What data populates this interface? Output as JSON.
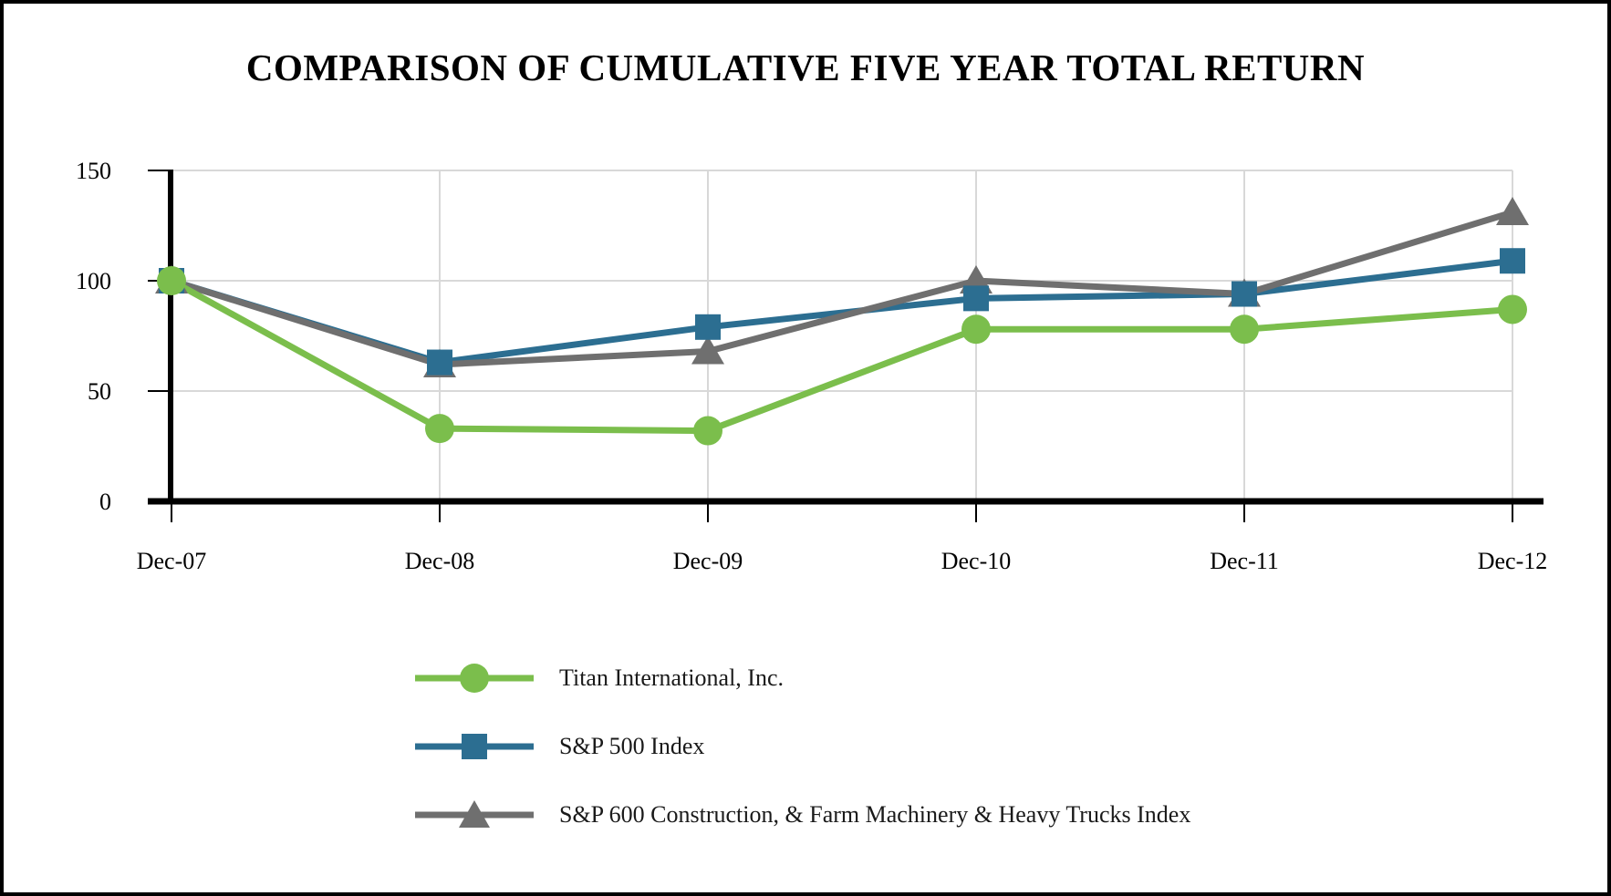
{
  "title": "COMPARISON OF CUMULATIVE FIVE YEAR TOTAL RETURN",
  "chart_data": {
    "type": "line",
    "title": "COMPARISON OF CUMULATIVE FIVE YEAR TOTAL RETURN",
    "categories": [
      "Dec-07",
      "Dec-08",
      "Dec-09",
      "Dec-10",
      "Dec-11",
      "Dec-12"
    ],
    "series": [
      {
        "name": "Titan International, Inc.",
        "marker": "circle",
        "color": "#7BBE4C",
        "values": [
          100,
          33,
          32,
          78,
          78,
          87
        ]
      },
      {
        "name": "S&P 500 Index",
        "marker": "square",
        "color": "#2C6E91",
        "values": [
          100,
          63,
          79,
          92,
          94,
          109
        ]
      },
      {
        "name": "S&P 600 Construction, & Farm Machinery & Heavy Trucks Index",
        "marker": "triangle",
        "color": "#6F6F6F",
        "values": [
          100,
          62,
          68,
          100,
          94,
          131
        ]
      }
    ],
    "xlabel": "",
    "ylabel": "",
    "ylim": [
      0,
      150
    ],
    "yticks": [
      0,
      50,
      100,
      150
    ],
    "grid": true,
    "legend_position": "bottom-left"
  },
  "colors": {
    "background": "#FFFFFF",
    "border": "#000000",
    "axis": "#000000",
    "gridline": "#D8D8D8",
    "text": "#000000"
  }
}
